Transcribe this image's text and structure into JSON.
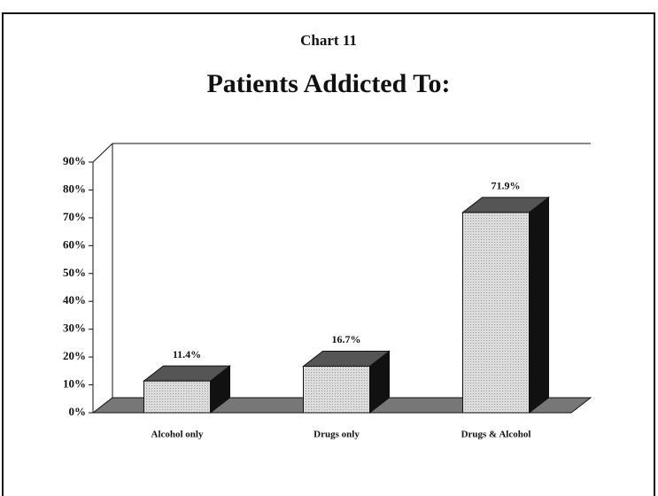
{
  "chart_data": {
    "type": "bar3d",
    "supertitle": "Chart 11",
    "title": "Patients Addicted To:",
    "categories": [
      "Alcohol only",
      "Drugs only",
      "Drugs & Alcohol"
    ],
    "values": [
      11.4,
      16.7,
      71.9
    ],
    "value_labels": [
      "11.4%",
      "16.7%",
      "71.9%"
    ],
    "color": "#d6d6d6",
    "ylim": [
      0,
      90
    ],
    "yticks": [
      {
        "value": 0,
        "label": "0%"
      },
      {
        "value": 10,
        "label": "10%"
      },
      {
        "value": 20,
        "label": "20%"
      },
      {
        "value": 30,
        "label": "30%"
      },
      {
        "value": 40,
        "label": "40%"
      },
      {
        "value": 50,
        "label": "50%"
      },
      {
        "value": 60,
        "label": "60%"
      },
      {
        "value": 70,
        "label": "70%"
      },
      {
        "value": 80,
        "label": "80%"
      },
      {
        "value": 90,
        "label": "90%"
      }
    ]
  }
}
